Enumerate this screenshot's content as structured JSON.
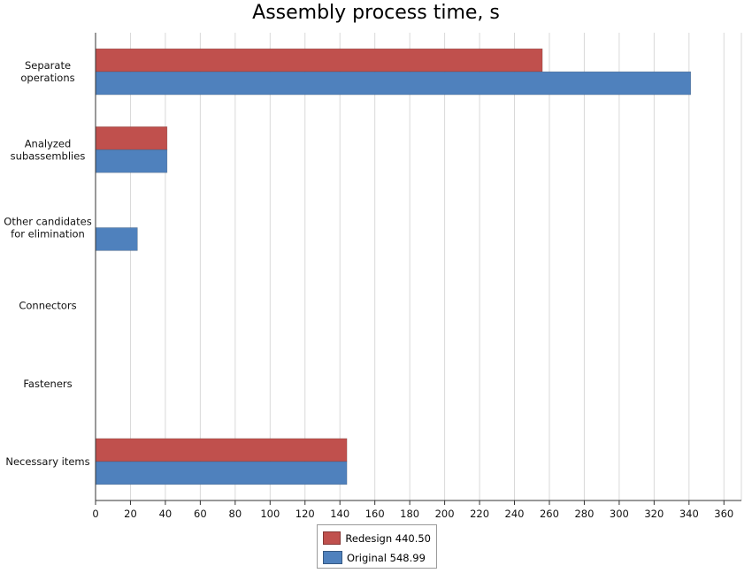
{
  "chart_data": {
    "type": "bar",
    "orientation": "horizontal",
    "title": "Assembly process time, s",
    "categories": [
      "Separate operations",
      "Analyzed subassemblies",
      "Other candidates for elimination",
      "Connectors",
      "Fasteners",
      "Necessary items"
    ],
    "category_label_lines": [
      [
        "Separate",
        "operations"
      ],
      [
        "Analyzed",
        "subassemblies"
      ],
      [
        "Other candidates",
        "for elimination"
      ],
      [
        "Connectors"
      ],
      [
        "Fasteners"
      ],
      [
        "Necessary items"
      ]
    ],
    "series": [
      {
        "name": "Redesign",
        "legend_label": "Redesign 440.50",
        "color": "#c0504d",
        "values": [
          256,
          41,
          0,
          0,
          0,
          144
        ]
      },
      {
        "name": "Original",
        "legend_label": "Original 548.99",
        "color": "#4f81bd",
        "values": [
          341,
          41,
          24,
          0,
          0,
          144
        ]
      }
    ],
    "xlim": [
      0,
      370
    ],
    "xticks": [
      0,
      20,
      40,
      60,
      80,
      100,
      120,
      140,
      160,
      180,
      200,
      220,
      240,
      260,
      280,
      300,
      320,
      340,
      360
    ],
    "grid": "vertical",
    "legend_position": "bottom-center"
  }
}
